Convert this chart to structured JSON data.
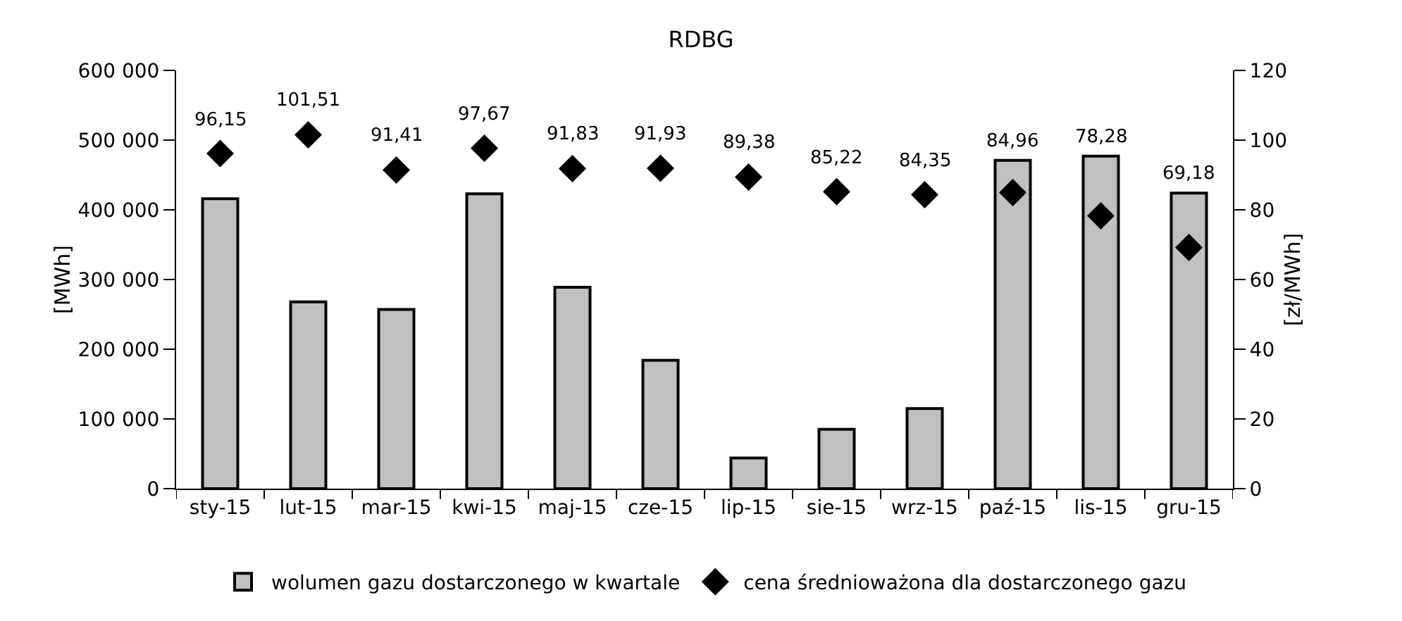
{
  "chart_data": {
    "type": "bar",
    "title": "RDBG",
    "ylabel": "[MWh]",
    "y2label": "[zł/MWh]",
    "categories": [
      "sty-15",
      "lut-15",
      "mar-15",
      "kwi-15",
      "maj-15",
      "cze-15",
      "lip-15",
      "sie-15",
      "wrz-15",
      "paź-15",
      "lis-15",
      "gru-15"
    ],
    "series": [
      {
        "name": "wolumen gazu dostarczonego w kwartale",
        "color": "#c0c0c0",
        "values": [
          416000,
          268000,
          257000,
          423000,
          289000,
          184000,
          44000,
          85000,
          115000,
          471000,
          477000,
          424000
        ]
      },
      {
        "name": "cena średnioważona dla dostarczonego gazu",
        "type": "scatter",
        "axis": "y2",
        "color": "#000000",
        "marker": "diamond",
        "values": [
          96.15,
          101.51,
          91.41,
          97.67,
          91.83,
          91.93,
          89.38,
          85.22,
          84.35,
          84.96,
          78.28,
          69.18
        ],
        "value_labels": [
          "96,15",
          "101,51",
          "91,41",
          "97,67",
          "91,83",
          "91,93",
          "89,38",
          "85,22",
          "84,35",
          "84,96",
          "78,28",
          "69,18"
        ]
      }
    ],
    "ylim": [
      0,
      600000
    ],
    "yticks": [
      0,
      {
        "value": 100000,
        "label": "100 000"
      },
      {
        "value": 200000,
        "label": "200 000"
      },
      {
        "value": 300000,
        "label": "300 000"
      },
      {
        "value": 400000,
        "label": "400 000"
      },
      {
        "value": 500000,
        "label": "500 000"
      },
      {
        "value": 600000,
        "label": "600 000"
      }
    ],
    "y2lim": [
      0,
      120
    ],
    "y2ticks": [
      0,
      20,
      40,
      60,
      80,
      100,
      120
    ],
    "grid": false,
    "legend": "bottom"
  }
}
